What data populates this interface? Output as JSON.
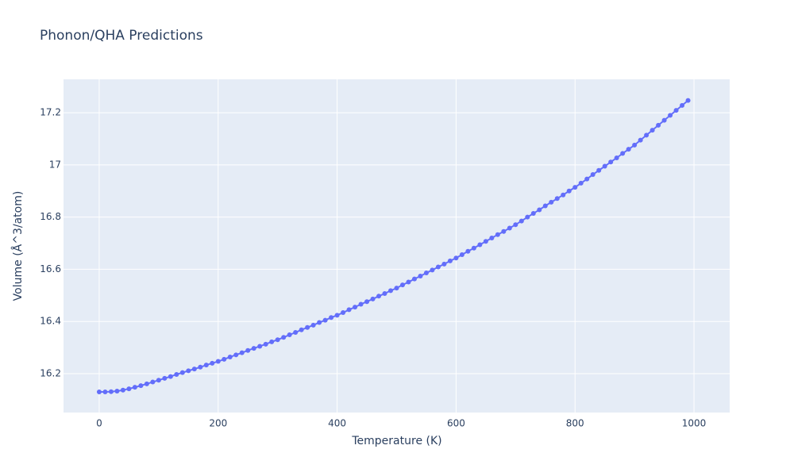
{
  "chart_data": {
    "type": "line",
    "title": "Phonon/QHA Predictions",
    "x_label": "Temperature (K)",
    "y_label": "Volume (Å^3/atom)",
    "x": [
      0,
      10,
      20,
      30,
      40,
      50,
      60,
      70,
      80,
      90,
      100,
      110,
      120,
      130,
      140,
      150,
      160,
      170,
      180,
      190,
      200,
      210,
      220,
      230,
      240,
      250,
      260,
      270,
      280,
      290,
      300,
      310,
      320,
      330,
      340,
      350,
      360,
      370,
      380,
      390,
      400,
      410,
      420,
      430,
      440,
      450,
      460,
      470,
      480,
      490,
      500,
      510,
      520,
      530,
      540,
      550,
      560,
      570,
      580,
      590,
      600,
      610,
      620,
      630,
      640,
      650,
      660,
      670,
      680,
      690,
      700,
      710,
      720,
      730,
      740,
      750,
      760,
      770,
      780,
      790,
      800,
      810,
      820,
      830,
      840,
      850,
      860,
      870,
      880,
      890,
      900,
      910,
      920,
      930,
      940,
      950,
      960,
      970,
      980,
      990
    ],
    "series": [
      {
        "name": "Volume",
        "color": "#636efa",
        "values": [
          16.13,
          16.13,
          16.131,
          16.133,
          16.137,
          16.142,
          16.148,
          16.154,
          16.161,
          16.168,
          16.175,
          16.182,
          16.189,
          16.197,
          16.204,
          16.211,
          16.218,
          16.225,
          16.233,
          16.24,
          16.247,
          16.255,
          16.264,
          16.272,
          16.28,
          16.289,
          16.297,
          16.305,
          16.313,
          16.322,
          16.33,
          16.339,
          16.349,
          16.358,
          16.368,
          16.377,
          16.386,
          16.396,
          16.405,
          16.415,
          16.424,
          16.434,
          16.445,
          16.455,
          16.466,
          16.476,
          16.486,
          16.497,
          16.507,
          16.518,
          16.528,
          16.54,
          16.551,
          16.563,
          16.574,
          16.586,
          16.597,
          16.609,
          16.62,
          16.632,
          16.643,
          16.656,
          16.669,
          16.681,
          16.694,
          16.707,
          16.72,
          16.733,
          16.745,
          16.758,
          16.771,
          16.785,
          16.8,
          16.814,
          16.828,
          16.843,
          16.857,
          16.871,
          16.885,
          16.9,
          16.914,
          16.93,
          16.946,
          16.963,
          16.979,
          16.995,
          17.011,
          17.027,
          17.044,
          17.06,
          17.076,
          17.095,
          17.114,
          17.133,
          17.152,
          17.171,
          17.19,
          17.209,
          17.228,
          17.247
        ]
      }
    ],
    "xlim": [
      -60,
      1060
    ],
    "ylim": [
      16.051,
      17.328
    ],
    "xticks": [
      0,
      200,
      400,
      600,
      800,
      1000
    ],
    "yticks": [
      16.2,
      16.4,
      16.6,
      16.8,
      17,
      17.2
    ],
    "grid": true
  }
}
